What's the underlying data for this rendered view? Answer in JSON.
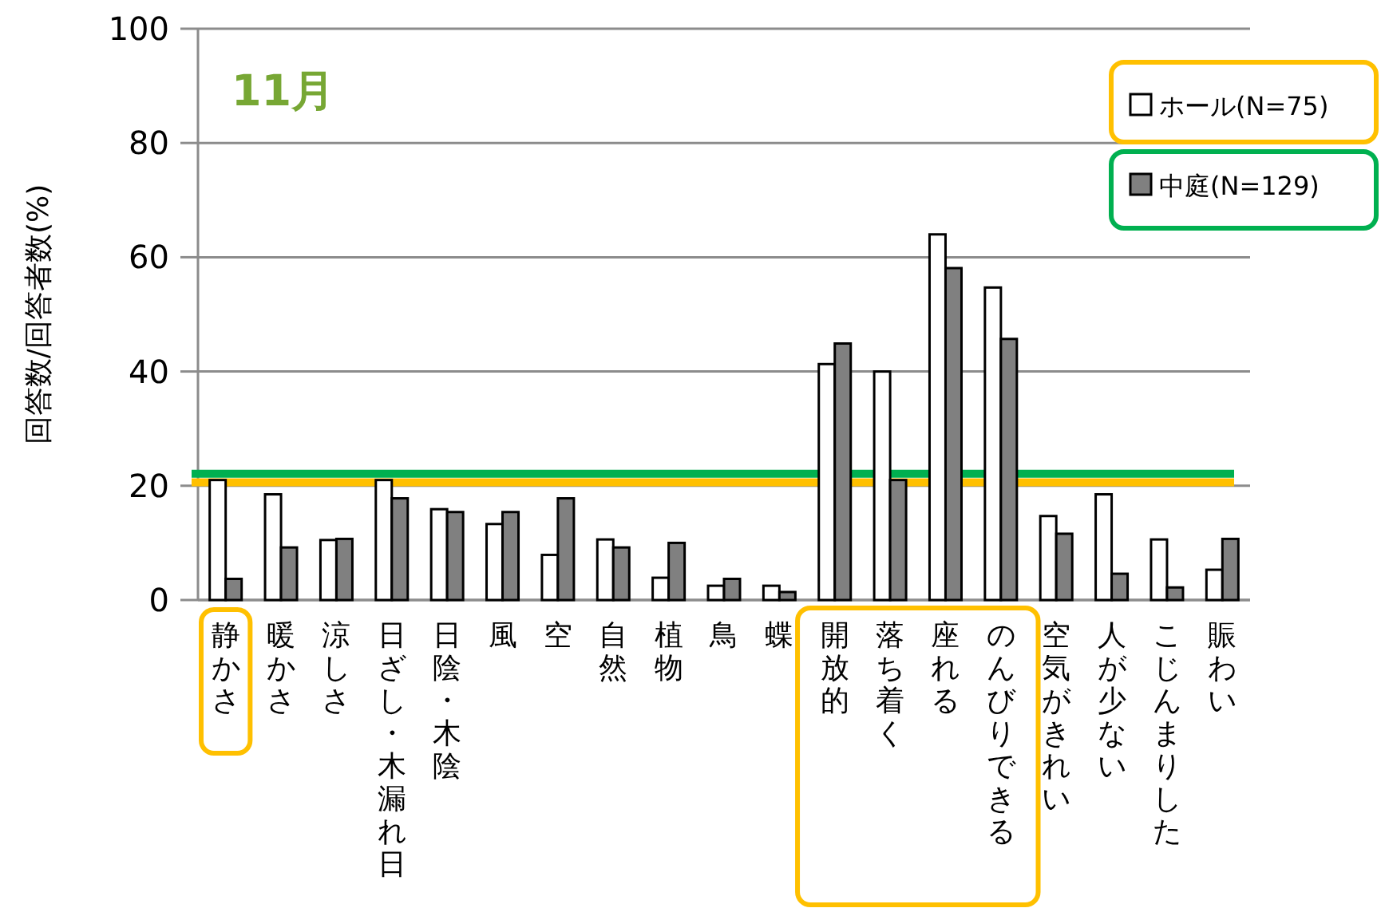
{
  "chart_data": {
    "type": "bar",
    "title": "11月",
    "ylabel": "回答数/回答者数(%)",
    "categories": [
      "静かさ",
      "暖かさ",
      "涼しさ",
      "日ざし・木漏れ日",
      "日陰・木陰",
      "風",
      "空",
      "自然",
      "植物",
      "鳥",
      "蝶",
      "開放的",
      "落ち着く",
      "座れる",
      "のんびりできる",
      "空気がきれい",
      "人が少ない",
      "こじんまりした",
      "賑わい"
    ],
    "series": [
      {
        "name": "ホール(N=75)",
        "color": "#ffffff",
        "values": [
          21,
          18.5,
          10.5,
          21,
          15.9,
          13.3,
          7.9,
          10.6,
          3.9,
          2.5,
          2.5,
          41.3,
          40.0,
          64.0,
          54.7,
          14.7,
          18.5,
          10.6,
          5.3
        ]
      },
      {
        "name": "中庭(N=129)",
        "color": "#808080",
        "values": [
          3.7,
          9.2,
          10.7,
          17.8,
          15.4,
          15.4,
          17.8,
          9.2,
          10.0,
          3.7,
          1.4,
          44.9,
          21,
          58.1,
          45.7,
          11.6,
          4.6,
          2.2,
          10.7
        ]
      }
    ],
    "ylim": [
      0,
      100
    ],
    "yticks": [
      0,
      20,
      40,
      60,
      80,
      100
    ],
    "grid": "y",
    "legend": "top right",
    "ref_lines": [
      {
        "axis": "y",
        "value": 20.6,
        "color": "#ffc000"
      },
      {
        "axis": "y",
        "value": 22.1,
        "color": "#00b050"
      }
    ]
  }
}
